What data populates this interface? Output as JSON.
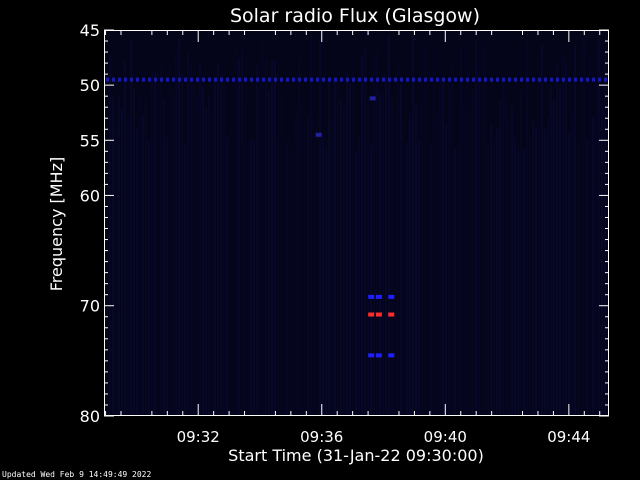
{
  "footer_text": "Updated Wed Feb  9 14:49:49 2022",
  "chart_data": {
    "type": "heatmap",
    "title": "Solar radio Flux (Glasgow)",
    "xlabel": "Start Time (31-Jan-22 09:30:00)",
    "ylabel": "Frequency [MHz]",
    "x_unit": "minutes after 09:30:00",
    "xlim": [
      -1.05,
      15.3
    ],
    "ylim": [
      45,
      80
    ],
    "y_reversed": true,
    "grid": false,
    "x_ticks": [
      {
        "value": 2,
        "label": "09:32"
      },
      {
        "value": 6,
        "label": "09:36"
      },
      {
        "value": 10,
        "label": "09:40"
      },
      {
        "value": 14,
        "label": "09:44"
      }
    ],
    "y_ticks": [
      45,
      50,
      55,
      60,
      70,
      80
    ],
    "background_color": "#05051a",
    "features": [
      {
        "name": "interference band",
        "x_range": [
          -1.05,
          15.3
        ],
        "y": 49.5,
        "color": "#1a1aa8",
        "style": "dashed"
      },
      {
        "name": "blue dots upper",
        "x": [
          7.6,
          7.85,
          8.25
        ],
        "y": 69.2,
        "color": "#1e1eff"
      },
      {
        "name": "red dots",
        "x": [
          7.6,
          7.85,
          8.25
        ],
        "y": 70.8,
        "color": "#ff2a2a"
      },
      {
        "name": "blue dots lower",
        "x": [
          7.6,
          7.85,
          8.25
        ],
        "y": 74.5,
        "color": "#1e1eff"
      },
      {
        "name": "faint speck",
        "x": [
          7.65
        ],
        "y": 51.2,
        "color": "#2020a0"
      },
      {
        "name": "faint speck",
        "x": [
          5.9
        ],
        "y": 54.5,
        "color": "#2020a0"
      }
    ]
  }
}
